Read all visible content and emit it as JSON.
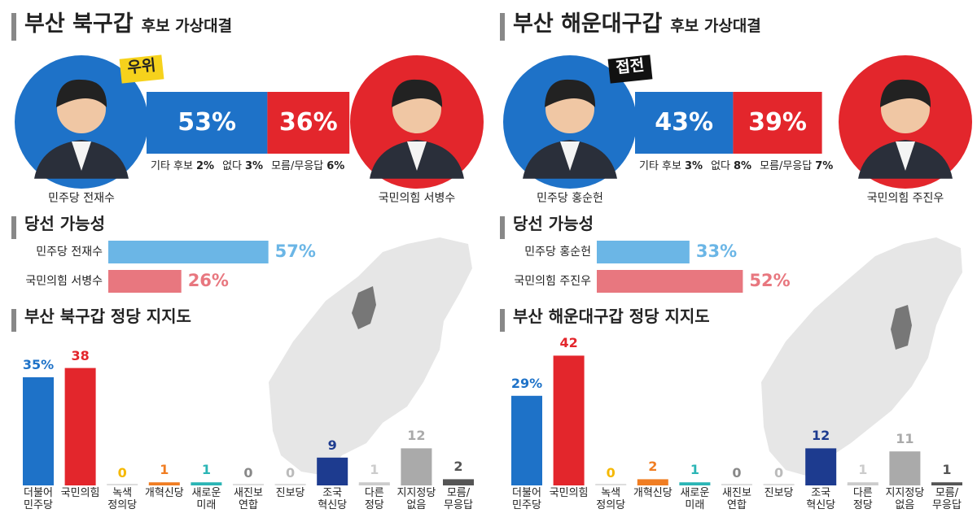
{
  "chart_data": [
    {
      "type": "matchup",
      "title": "부산 북구갑",
      "subtitle": "후보 가상대결",
      "badge": "우위",
      "badge_color": "#f6d21c",
      "badge_text_color": "#222",
      "categories": [
        "민주당 전재수",
        "국민의힘 서병수"
      ],
      "values": [
        53,
        36
      ],
      "value_labels": [
        "53%",
        "36%"
      ],
      "colors": [
        "#1e72c8",
        "#e3262c"
      ],
      "others": {
        "categories": [
          "기타 후보",
          "없다",
          "모름/무응답"
        ],
        "values": [
          2,
          3,
          6
        ],
        "value_labels": [
          "2%",
          "3%",
          "6%"
        ]
      }
    },
    {
      "type": "hbar",
      "title": "당선 가능성",
      "categories": [
        "민주당 전재수",
        "국민의힘 서병수"
      ],
      "values": [
        57,
        26
      ],
      "value_labels": [
        "57%",
        "26%"
      ],
      "colors": [
        "#6bb6e6",
        "#e8777f"
      ]
    },
    {
      "type": "bar",
      "title": "부산 북구갑 정당 지지도",
      "categories": [
        "더불어\n민주당",
        "국민의힘",
        "녹색\n정의당",
        "개혁신당",
        "새로운\n미래",
        "새진보\n연합",
        "진보당",
        "조국\n혁신당",
        "다른\n정당",
        "지지정당\n없음",
        "모름/\n무응답"
      ],
      "values": [
        35,
        38,
        0,
        1,
        1,
        0,
        0,
        9,
        1,
        12,
        2
      ],
      "value_labels": [
        "35%",
        "38",
        "0",
        "1",
        "1",
        "0",
        "0",
        "9",
        "1",
        "12",
        "2"
      ],
      "colors": [
        "#1e72c8",
        "#e3262c",
        "#f5b800",
        "#f07d22",
        "#2bb5b5",
        "#888888",
        "#bbbbbb",
        "#1d3b8f",
        "#cccccc",
        "#aaaaaa",
        "#555555"
      ]
    },
    {
      "type": "matchup",
      "title": "부산 해운대구갑",
      "subtitle": "후보 가상대결",
      "badge": "접전",
      "badge_color": "#111111",
      "badge_text_color": "#ffffff",
      "categories": [
        "민주당 홍순헌",
        "국민의힘 주진우"
      ],
      "values": [
        43,
        39
      ],
      "value_labels": [
        "43%",
        "39%"
      ],
      "colors": [
        "#1e72c8",
        "#e3262c"
      ],
      "others": {
        "categories": [
          "기타 후보",
          "없다",
          "모름/무응답"
        ],
        "values": [
          3,
          8,
          7
        ],
        "value_labels": [
          "3%",
          "8%",
          "7%"
        ]
      }
    },
    {
      "type": "hbar",
      "title": "당선 가능성",
      "categories": [
        "민주당 홍순헌",
        "국민의힘 주진우"
      ],
      "values": [
        33,
        52
      ],
      "value_labels": [
        "33%",
        "52%"
      ],
      "colors": [
        "#6bb6e6",
        "#e8777f"
      ]
    },
    {
      "type": "bar",
      "title": "부산 해운대구갑 정당 지지도",
      "categories": [
        "더불어\n민주당",
        "국민의힘",
        "녹색\n정의당",
        "개혁신당",
        "새로운\n미래",
        "새진보\n연합",
        "진보당",
        "조국\n혁신당",
        "다른\n정당",
        "지지정당\n없음",
        "모름/\n무응답"
      ],
      "values": [
        29,
        42,
        0,
        2,
        1,
        0,
        0,
        12,
        1,
        11,
        1
      ],
      "value_labels": [
        "29%",
        "42",
        "0",
        "2",
        "1",
        "0",
        "0",
        "12",
        "1",
        "11",
        "1"
      ],
      "colors": [
        "#1e72c8",
        "#e3262c",
        "#f5b800",
        "#f07d22",
        "#2bb5b5",
        "#888888",
        "#bbbbbb",
        "#1d3b8f",
        "#cccccc",
        "#aaaaaa",
        "#555555"
      ]
    }
  ]
}
